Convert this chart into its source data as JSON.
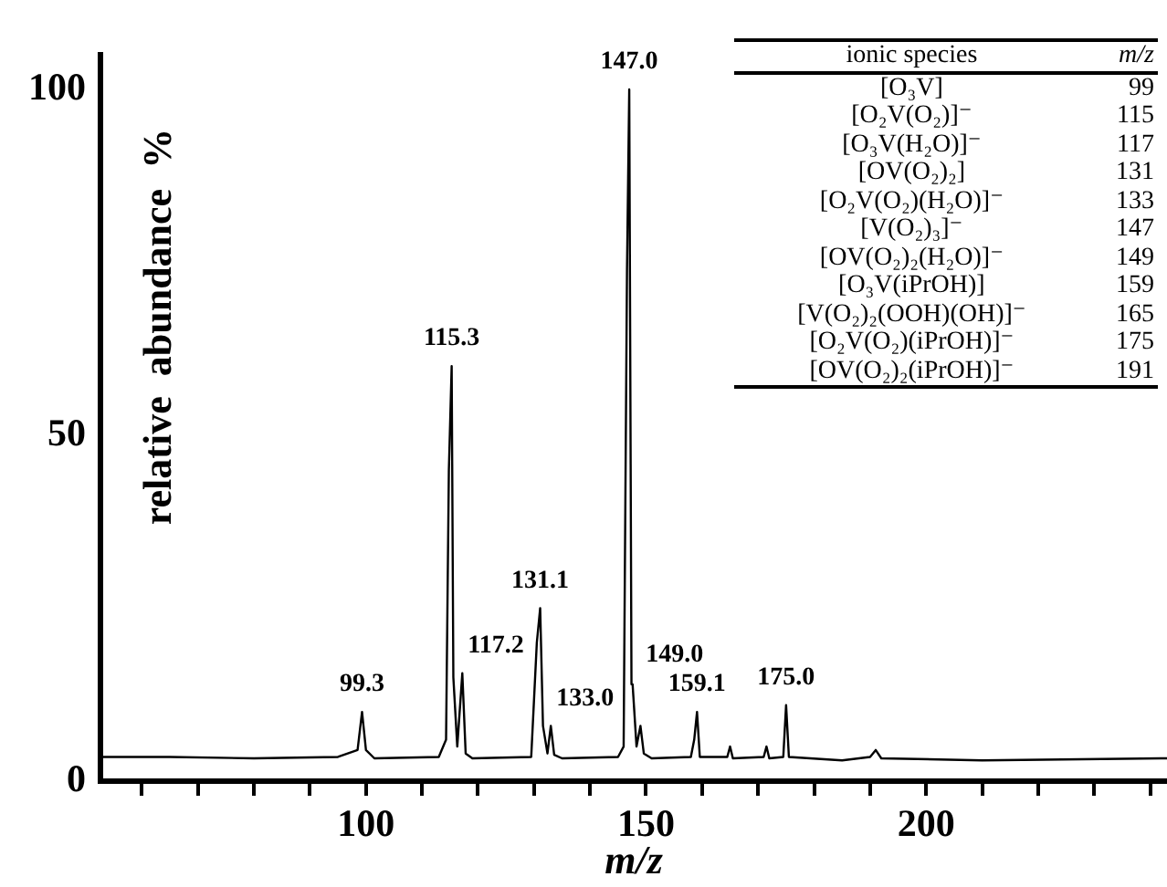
{
  "chart_data": {
    "type": "line",
    "xlabel": "m/z",
    "ylabel": "relative abundance %",
    "color": "#000000",
    "marker": "none",
    "grid": false,
    "legend": false,
    "x": [
      53,
      65,
      80,
      95,
      98.5,
      99.3,
      100,
      101.5,
      113,
      114.3,
      114.8,
      115.3,
      115.6,
      116.3,
      117.2,
      117.8,
      119,
      129.5,
      130.5,
      131.1,
      131.6,
      132.4,
      133.0,
      133.6,
      135,
      145,
      146,
      146.6,
      147.0,
      147.4,
      147.6,
      148.3,
      149.0,
      149.6,
      151,
      158,
      158.6,
      159.1,
      159.6,
      164.5,
      165,
      165.5,
      171,
      171.5,
      172,
      174.5,
      175.0,
      175.5,
      185,
      190,
      191,
      192,
      210,
      243
    ],
    "values": [
      3.5,
      3.5,
      3.3,
      3.5,
      4.5,
      10,
      4.5,
      3.3,
      3.5,
      6,
      45,
      60,
      15,
      5,
      15.6,
      4,
      3.3,
      3.5,
      20,
      25,
      8,
      4,
      8,
      3.8,
      3.3,
      3.5,
      5,
      74,
      100,
      14,
      14,
      5,
      8,
      4,
      3.3,
      3.5,
      6,
      10,
      3.5,
      3.5,
      5,
      3.3,
      3.5,
      5,
      3.3,
      3.5,
      11,
      3.5,
      3,
      3.5,
      4.5,
      3.3,
      3,
      3.3
    ],
    "xlim": [
      52.6,
      243
    ],
    "xticks": [
      {
        "value": 60,
        "label": null
      },
      {
        "value": 70,
        "label": null
      },
      {
        "value": 80,
        "label": null
      },
      {
        "value": 90,
        "label": null
      },
      100,
      {
        "value": 110,
        "label": null
      },
      {
        "value": 120,
        "label": null
      },
      {
        "value": 130,
        "label": null
      },
      {
        "value": 140,
        "label": null
      },
      150,
      {
        "value": 160,
        "label": null
      },
      {
        "value": 170,
        "label": null
      },
      {
        "value": 180,
        "label": null
      },
      {
        "value": 190,
        "label": null
      },
      200,
      {
        "value": 210,
        "label": null
      },
      {
        "value": 220,
        "label": null
      },
      {
        "value": 230,
        "label": null
      },
      {
        "value": 240,
        "label": null
      }
    ],
    "ylim": [
      0,
      105
    ],
    "yticks": [
      0,
      50,
      100
    ],
    "annotations": [
      {
        "text": "99.3",
        "x": 99.3,
        "y": 10
      },
      {
        "text": "115.3",
        "x": 115.3,
        "y": 60
      },
      {
        "text": "117.2",
        "x": 117.2,
        "y": 15.6
      },
      {
        "text": "131.1",
        "x": 131.1,
        "y": 25
      },
      {
        "text": "133.0",
        "x": 133.0,
        "y": 8
      },
      {
        "text": "147.0",
        "x": 147.0,
        "y": 100
      },
      {
        "text": "149.0",
        "x": 149.0,
        "y": 8
      },
      {
        "text": "159.1",
        "x": 159.1,
        "y": 10
      },
      {
        "text": "175.0",
        "x": 175.0,
        "y": 11
      },
      "ionic species",
      "m/z",
      "[O₃V]",
      "99",
      "[O₂V(O₂)]⁻",
      "115",
      "[O₃V(H₂O)]⁻",
      "117",
      "[OV(O₂)₂]",
      "131",
      "[O₂V(O₂)(H₂O)]⁻",
      "133",
      "[V(O₂)₃]⁻",
      "147",
      "[OV(O₂)₂(H₂O)]⁻",
      "149",
      "[O₃V(iPrOH)]",
      "159",
      "[V(O₂)₂(OOH)(OH)]⁻",
      "165",
      "[O₂V(O₂)(iPrOH)]⁻",
      "175",
      "[OV(O₂)₂(iPrOH)]⁻",
      "191"
    ]
  }
}
